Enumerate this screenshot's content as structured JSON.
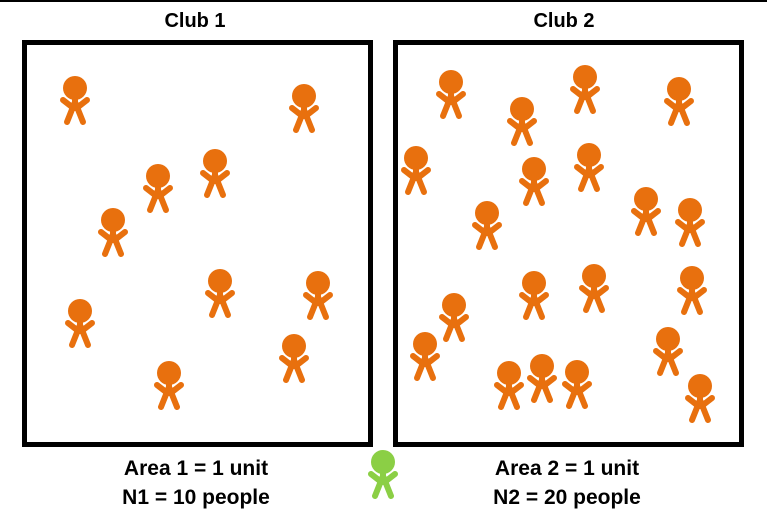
{
  "club1": {
    "title": "Club 1",
    "area_label": "Area 1 = 1 unit",
    "count_label": "N1 = 10 people",
    "people_count": 10
  },
  "club2": {
    "title": "Club 2",
    "area_label": "Area 2 = 1 unit",
    "count_label": "N2 = 20 people",
    "people_count": 20
  },
  "colors": {
    "person": "#e8700e",
    "newcomer": "#8bcf45",
    "border": "#000000"
  },
  "icons": {
    "person": "person-icon",
    "newcomer": "newcomer-person-icon"
  }
}
